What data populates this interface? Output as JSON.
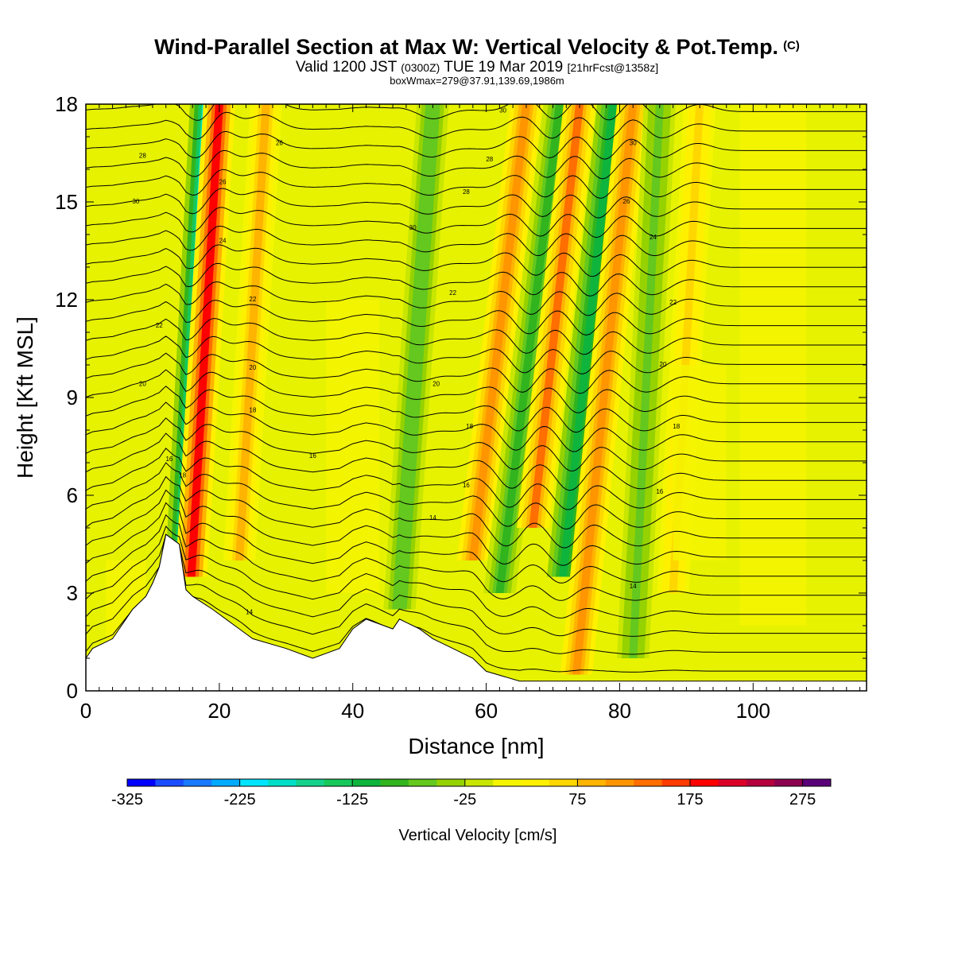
{
  "header": {
    "title": "Wind-Parallel Section at Max W: Vertical Velocity & Pot.Temp.",
    "title_tag": "(C)",
    "subtitle_main": "Valid 1200 JST",
    "subtitle_z": "(0300Z)",
    "subtitle_date": "TUE 19 Mar 2019",
    "subtitle_fcst": "[21hrFcst@1358z]",
    "box_info": "boxWmax=279@37.91,139.69,1986m"
  },
  "colorbar": {
    "title": "Vertical Velocity [cm/s]",
    "labels": [
      "-325",
      "-225",
      "-125",
      "-25",
      "75",
      "175",
      "275"
    ],
    "colors": [
      "#0000ff",
      "#1a4dff",
      "#1a7aff",
      "#00aaff",
      "#00e5ff",
      "#00e0c8",
      "#14d28c",
      "#16c85a",
      "#0fb43c",
      "#32b41e",
      "#64c81e",
      "#96d200",
      "#c8e600",
      "#f5f500",
      "#fff000",
      "#ffd700",
      "#ffb400",
      "#ff9600",
      "#ff6e00",
      "#ff3c00",
      "#ff0000",
      "#dc0028",
      "#b4003c",
      "#8c0050",
      "#5a0078"
    ]
  },
  "chart_data": {
    "type": "heatmap",
    "title": "Wind-Parallel Section at Max W: Vertical Velocity & Pot.Temp.",
    "xlabel": "Distance [nm]",
    "ylabel": "Height [Kft MSL]",
    "xlim": [
      0,
      117
    ],
    "ylim": [
      0,
      18
    ],
    "xticks": [
      0,
      20,
      40,
      60,
      80,
      100
    ],
    "yticks": [
      0,
      3,
      6,
      9,
      12,
      15,
      18
    ],
    "fill_variable": "Vertical Velocity [cm/s]",
    "fill_levels": [
      -325,
      -225,
      -125,
      -25,
      75,
      175,
      275
    ],
    "contour_variable": "Potential Temperature (C)",
    "contour_labels": [
      {
        "x": 12.5,
        "y": 7.1,
        "text": "16"
      },
      {
        "x": 14.5,
        "y": 6.6,
        "text": "18"
      },
      {
        "x": 8.5,
        "y": 9.4,
        "text": "20"
      },
      {
        "x": 11,
        "y": 11.2,
        "text": "22"
      },
      {
        "x": 25,
        "y": 9.9,
        "text": "20"
      },
      {
        "x": 25,
        "y": 8.6,
        "text": "18"
      },
      {
        "x": 34,
        "y": 7.2,
        "text": "16"
      },
      {
        "x": 25,
        "y": 12.0,
        "text": "22"
      },
      {
        "x": 20.5,
        "y": 13.8,
        "text": "24"
      },
      {
        "x": 20.5,
        "y": 15.6,
        "text": "26"
      },
      {
        "x": 8.5,
        "y": 16.4,
        "text": "28"
      },
      {
        "x": 7.5,
        "y": 15.0,
        "text": "30"
      },
      {
        "x": 29,
        "y": 16.8,
        "text": "26"
      },
      {
        "x": 49,
        "y": 14.2,
        "text": "30"
      },
      {
        "x": 55,
        "y": 12.2,
        "text": "22"
      },
      {
        "x": 52.5,
        "y": 9.4,
        "text": "20"
      },
      {
        "x": 57.5,
        "y": 8.1,
        "text": "18"
      },
      {
        "x": 57,
        "y": 6.3,
        "text": "16"
      },
      {
        "x": 52,
        "y": 5.3,
        "text": "14"
      },
      {
        "x": 24.5,
        "y": 2.4,
        "text": "14"
      },
      {
        "x": 57,
        "y": 15.3,
        "text": "28"
      },
      {
        "x": 60.5,
        "y": 16.3,
        "text": "28"
      },
      {
        "x": 62.5,
        "y": 17.8,
        "text": "30"
      },
      {
        "x": 82,
        "y": 16.8,
        "text": "30"
      },
      {
        "x": 81,
        "y": 15.0,
        "text": "26"
      },
      {
        "x": 85,
        "y": 13.9,
        "text": "24"
      },
      {
        "x": 88,
        "y": 11.9,
        "text": "22"
      },
      {
        "x": 86.5,
        "y": 10.0,
        "text": "20"
      },
      {
        "x": 88.5,
        "y": 8.1,
        "text": "18"
      },
      {
        "x": 86,
        "y": 6.1,
        "text": "16"
      },
      {
        "x": 82,
        "y": 3.2,
        "text": "14"
      }
    ],
    "terrain": [
      [
        0,
        1.0
      ],
      [
        1,
        1.3
      ],
      [
        4,
        1.6
      ],
      [
        5,
        1.9
      ],
      [
        6,
        2.2
      ],
      [
        7,
        2.5
      ],
      [
        9,
        2.9
      ],
      [
        10,
        3.3
      ],
      [
        11,
        3.8
      ],
      [
        12,
        4.8
      ],
      [
        14,
        4.5
      ],
      [
        15,
        3.1
      ],
      [
        16,
        2.9
      ],
      [
        19,
        2.5
      ],
      [
        21,
        2.2
      ],
      [
        23,
        1.9
      ],
      [
        25,
        1.6
      ],
      [
        30,
        1.3
      ],
      [
        34,
        1.0
      ],
      [
        38,
        1.3
      ],
      [
        40,
        1.9
      ],
      [
        42,
        2.2
      ],
      [
        46,
        1.9
      ],
      [
        47,
        2.2
      ],
      [
        50,
        1.9
      ],
      [
        52,
        1.6
      ],
      [
        55,
        1.3
      ],
      [
        58,
        1.0
      ],
      [
        60,
        0.6
      ],
      [
        65,
        0.3
      ],
      [
        117,
        0.3
      ]
    ],
    "w_features": [
      {
        "x_base": 14.5,
        "z_base": 4.5,
        "x_top": 18,
        "z_top": 18,
        "sign": "down",
        "peak": -200
      },
      {
        "x_base": 15.8,
        "z_base": 3.5,
        "x_top": 20,
        "z_top": 18,
        "sign": "up",
        "peak": 190
      },
      {
        "x_base": 23,
        "z_base": 4,
        "x_top": 27,
        "z_top": 18,
        "sign": "up",
        "peak": 90
      },
      {
        "x_base": 47,
        "z_base": 2.5,
        "x_top": 52,
        "z_top": 18,
        "sign": "down",
        "peak": -70
      },
      {
        "x_base": 58,
        "z_base": 4,
        "x_top": 66,
        "z_top": 18,
        "sign": "up",
        "peak": 100
      },
      {
        "x_base": 62,
        "z_base": 3,
        "x_top": 71,
        "z_top": 18,
        "sign": "down",
        "peak": -100
      },
      {
        "x_base": 67,
        "z_base": 5,
        "x_top": 74,
        "z_top": 18,
        "sign": "up",
        "peak": 130
      },
      {
        "x_base": 71.5,
        "z_base": 3.5,
        "x_top": 79,
        "z_top": 18,
        "sign": "down",
        "peak": -110
      },
      {
        "x_base": 73.5,
        "z_base": 0.5,
        "x_top": 82,
        "z_top": 18,
        "sign": "up",
        "peak": 120
      },
      {
        "x_base": 82,
        "z_base": 1,
        "x_top": 86,
        "z_top": 18,
        "sign": "down",
        "peak": -60
      },
      {
        "x_base": 88,
        "z_base": 3,
        "x_top": 92,
        "z_top": 18,
        "sign": "up",
        "peak": 50
      }
    ]
  }
}
